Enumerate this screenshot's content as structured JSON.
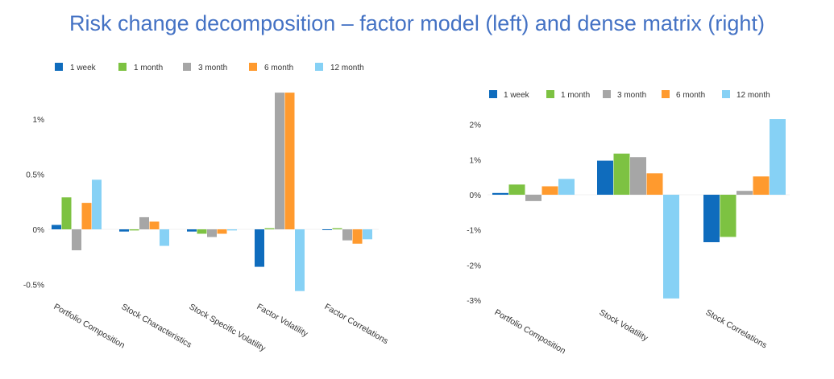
{
  "title": "Risk change decomposition – factor model (left) and dense matrix (right)",
  "chart_data": [
    {
      "type": "bar",
      "title": "",
      "categories": [
        "Portfolio Composition",
        "Stock Characteristics",
        "Stock Specific Volatility",
        "Factor Volatility",
        "Factor  Correlations"
      ],
      "series": [
        {
          "name": "1 week",
          "color": "#0F6CBD",
          "values": [
            0.04,
            -0.02,
            -0.02,
            -0.34,
            0.0
          ]
        },
        {
          "name": "1 month",
          "color": "#7DC242",
          "values": [
            0.29,
            -0.01,
            -0.04,
            0.01,
            0.01
          ]
        },
        {
          "name": "3 month",
          "color": "#A6A6A6",
          "values": [
            -0.19,
            0.11,
            -0.07,
            1.24,
            -0.1
          ]
        },
        {
          "name": "6 month",
          "color": "#FF9A2E",
          "values": [
            0.24,
            0.07,
            -0.04,
            1.24,
            -0.13
          ]
        },
        {
          "name": "12 month",
          "color": "#86D1F5",
          "values": [
            0.45,
            -0.15,
            -0.01,
            -0.56,
            -0.09
          ]
        }
      ],
      "y_ticks": [
        {
          "value": 1,
          "label": "1%"
        },
        {
          "value": 0.5,
          "label": "0.5%"
        },
        {
          "value": 0,
          "label": "0%"
        },
        {
          "value": -0.5,
          "label": "-0.5%"
        }
      ],
      "ylim": [
        -0.62,
        1.24
      ],
      "xlabel": "",
      "ylabel": "",
      "grid": false,
      "legend": "top-left"
    },
    {
      "type": "bar",
      "title": "",
      "categories": [
        "Portfolio Composition",
        "Stock Volatility",
        "Stock Correlations"
      ],
      "series": [
        {
          "name": "1 week",
          "color": "#0F6CBD",
          "values": [
            0.05,
            0.97,
            -1.35
          ]
        },
        {
          "name": "1 month",
          "color": "#7DC242",
          "values": [
            0.29,
            1.17,
            -1.2
          ]
        },
        {
          "name": "3 month",
          "color": "#A6A6A6",
          "values": [
            -0.18,
            1.07,
            0.11
          ]
        },
        {
          "name": "6 month",
          "color": "#FF9A2E",
          "values": [
            0.24,
            0.61,
            0.52
          ]
        },
        {
          "name": "12 month",
          "color": "#86D1F5",
          "values": [
            0.45,
            -2.95,
            2.15
          ]
        }
      ],
      "y_ticks": [
        {
          "value": 2,
          "label": "2%"
        },
        {
          "value": 1,
          "label": "1%"
        },
        {
          "value": 0,
          "label": "0%"
        },
        {
          "value": -1,
          "label": "-1%"
        },
        {
          "value": -2,
          "label": "-2%"
        },
        {
          "value": -3,
          "label": "-3%"
        }
      ],
      "ylim": [
        -3.0,
        2.3
      ],
      "xlabel": "",
      "ylabel": "",
      "grid": false,
      "legend": "top-left"
    }
  ]
}
